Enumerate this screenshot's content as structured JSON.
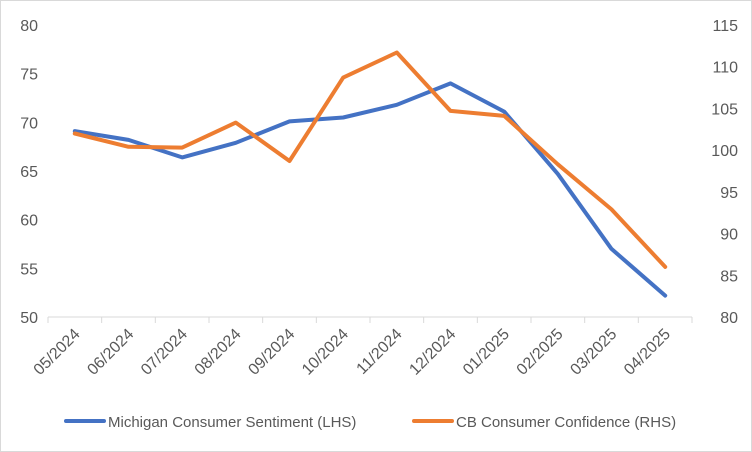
{
  "chart_data": {
    "type": "line",
    "title": "",
    "categories": [
      "05/2024",
      "06/2024",
      "07/2024",
      "08/2024",
      "09/2024",
      "10/2024",
      "11/2024",
      "12/2024",
      "01/2025",
      "02/2025",
      "03/2025",
      "04/2025"
    ],
    "series": [
      {
        "name": "Michigan Consumer Sentiment (LHS)",
        "axis": "left",
        "color": "#4472C4",
        "values": [
          69.1,
          68.2,
          66.4,
          67.9,
          70.1,
          70.5,
          71.8,
          74.0,
          71.1,
          64.7,
          57.0,
          52.2
        ]
      },
      {
        "name": "CB Consumer Confidence (RHS)",
        "axis": "right",
        "color": "#ED7D31",
        "values": [
          102.0,
          100.4,
          100.3,
          103.3,
          98.7,
          108.7,
          111.7,
          104.7,
          104.1,
          98.3,
          92.9,
          86.0
        ]
      }
    ],
    "y_left": {
      "min": 50,
      "max": 80,
      "step": 5,
      "ticks": [
        "50",
        "55",
        "60",
        "65",
        "70",
        "75",
        "80"
      ]
    },
    "y_right": {
      "min": 80,
      "max": 115,
      "step": 5,
      "ticks": [
        "80",
        "85",
        "90",
        "95",
        "100",
        "105",
        "110",
        "115"
      ]
    },
    "grid": false,
    "legend": "bottom"
  }
}
